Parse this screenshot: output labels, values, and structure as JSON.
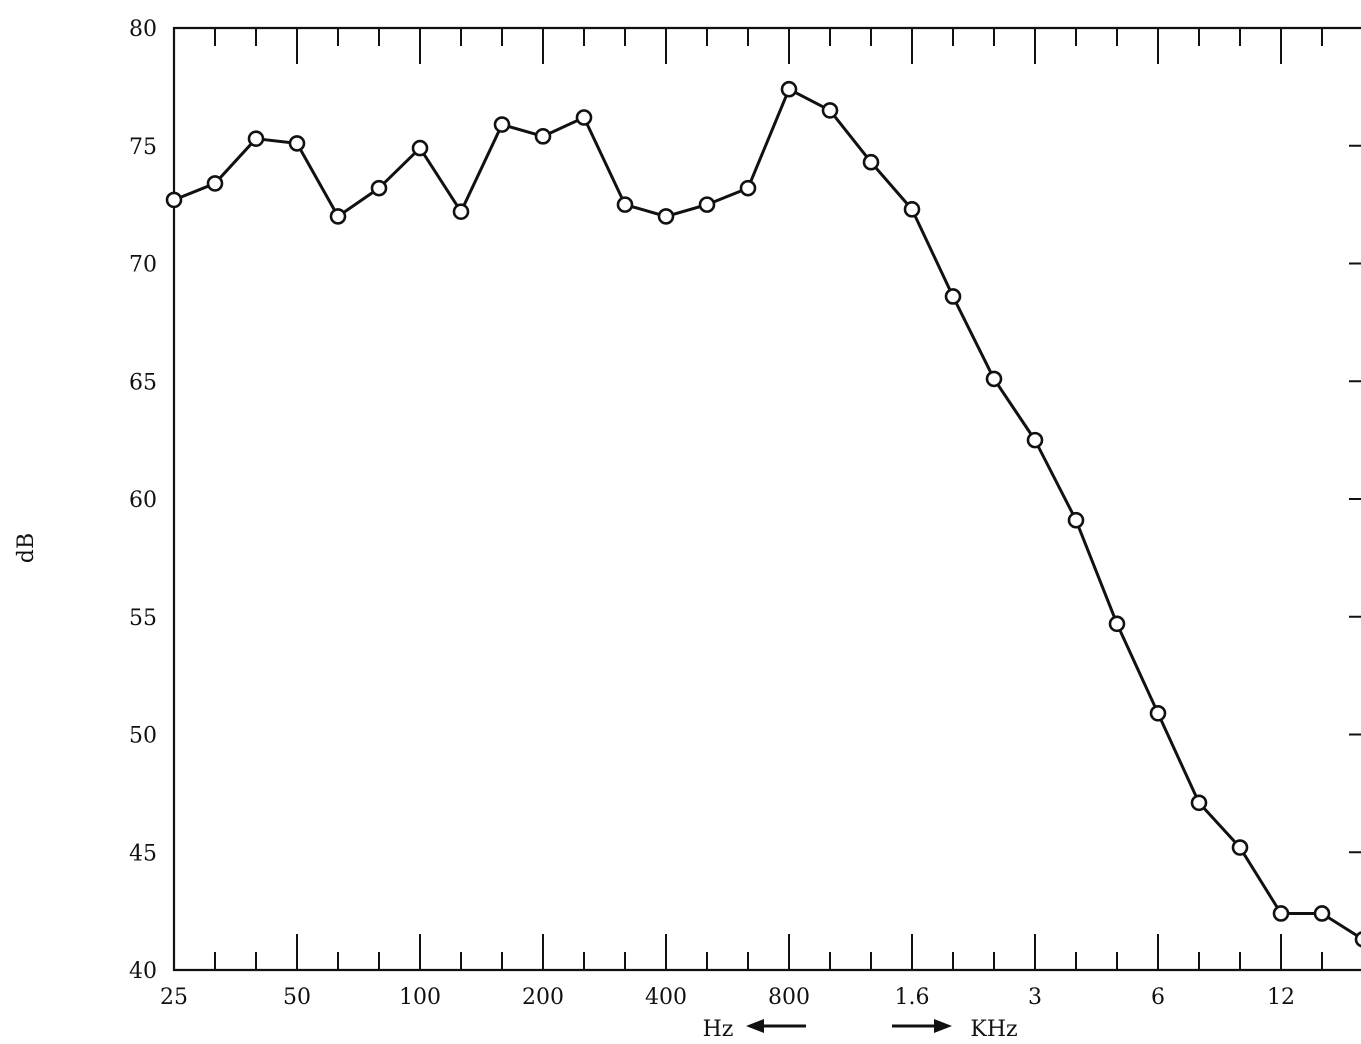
{
  "chart_data": {
    "type": "line",
    "ylabel": "dB",
    "xunit_left": "Hz",
    "xunit_right": "KHz",
    "ylim": [
      40,
      80
    ],
    "yticks": [
      40,
      45,
      50,
      55,
      60,
      65,
      70,
      75,
      80
    ],
    "xscale": "log (1/3-octave bands)",
    "xticklabels": [
      "25",
      "50",
      "100",
      "200",
      "400",
      "800",
      "1.6",
      "3",
      "6",
      "12"
    ],
    "grid": false,
    "series": [
      {
        "x": [
          25,
          31.5,
          40,
          50,
          63,
          80,
          100,
          125,
          160,
          200,
          250,
          315,
          400,
          500,
          630,
          800,
          1000,
          1250,
          1600,
          2000,
          2500,
          3150,
          4000,
          5000,
          6300,
          8000,
          10000,
          12500,
          16000,
          20000
        ],
        "values": [
          72.7,
          73.4,
          75.3,
          75.1,
          72.0,
          73.2,
          74.9,
          72.2,
          75.9,
          75.4,
          76.2,
          72.5,
          72.0,
          72.5,
          73.2,
          77.4,
          76.5,
          74.3,
          72.3,
          68.6,
          65.1,
          62.5,
          59.1,
          54.7,
          50.9,
          47.1,
          45.2,
          42.4,
          42.4,
          41.3
        ]
      }
    ]
  }
}
